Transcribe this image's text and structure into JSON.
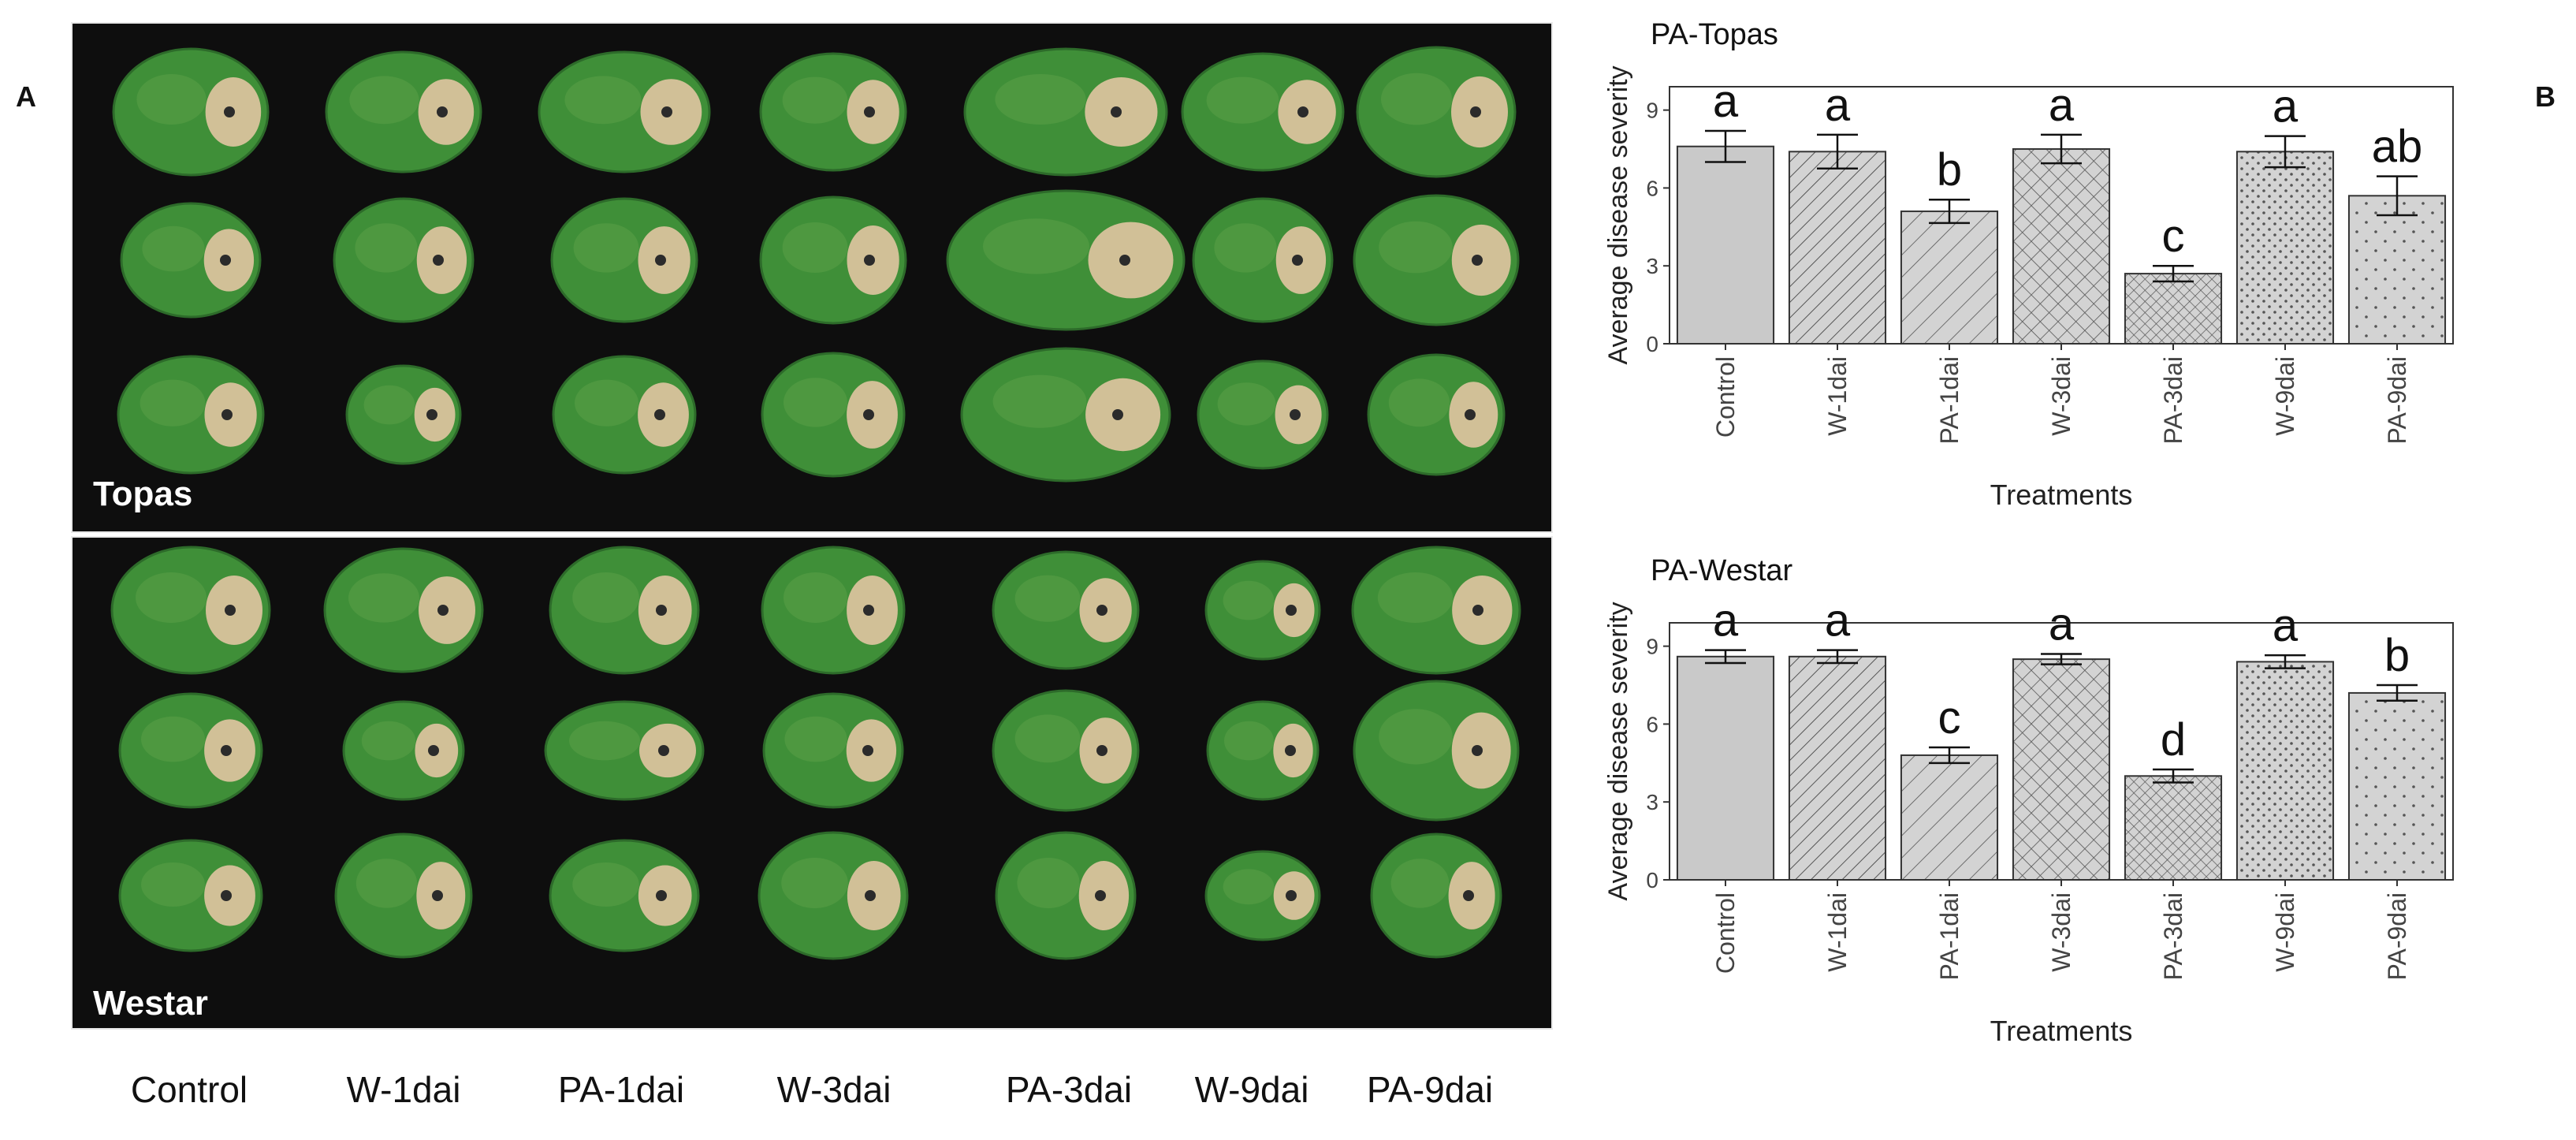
{
  "panel_a_label": "A",
  "panel_b_label": "B",
  "photo_top_label": "Topas",
  "photo_bottom_label": "Westar",
  "column_labels": [
    "Control",
    "W-1dai",
    "PA-1dai",
    "W-3dai",
    "PA-3dai",
    "W-9dai",
    "PA-9dai"
  ],
  "colors": {
    "photo_background": "#0e0e0e",
    "leaf_green": "#3f8f38",
    "lesion_tan": "#d9c39c",
    "bar_fill": "#c9c9c9",
    "bar_outline": "#333333"
  },
  "chart_data": [
    {
      "type": "bar",
      "title": "PA-Topas",
      "xlabel": "Treatments",
      "ylabel": "Average disease severity",
      "categories": [
        "Control",
        "W-1dai",
        "PA-1dai",
        "W-3dai",
        "PA-3dai",
        "W-9dai",
        "PA-9dai"
      ],
      "values": [
        7.6,
        7.4,
        5.1,
        7.5,
        2.7,
        7.4,
        5.7
      ],
      "errors": [
        0.6,
        0.65,
        0.45,
        0.55,
        0.3,
        0.6,
        0.75
      ],
      "significance_letters": [
        "a",
        "a",
        "b",
        "a",
        "c",
        "a",
        "ab"
      ],
      "patterns": [
        "solid",
        "diagonal",
        "diagonal-sparse",
        "crosshatch",
        "crosshatch-dense",
        "dots",
        "dots-sparse"
      ],
      "yticks": [
        0,
        3,
        6,
        9
      ],
      "ylim": [
        0,
        9.9
      ],
      "grid": false
    },
    {
      "type": "bar",
      "title": "PA-Westar",
      "xlabel": "Treatments",
      "ylabel": "Average disease severity",
      "categories": [
        "Control",
        "W-1dai",
        "PA-1dai",
        "W-3dai",
        "PA-3dai",
        "W-9dai",
        "PA-9dai"
      ],
      "values": [
        8.6,
        8.6,
        4.8,
        8.5,
        4.0,
        8.4,
        7.2
      ],
      "errors": [
        0.25,
        0.25,
        0.3,
        0.2,
        0.25,
        0.25,
        0.3
      ],
      "significance_letters": [
        "a",
        "a",
        "c",
        "a",
        "d",
        "a",
        "b"
      ],
      "patterns": [
        "solid",
        "diagonal",
        "diagonal-sparse",
        "crosshatch",
        "crosshatch-dense",
        "dots",
        "dots-sparse"
      ],
      "yticks": [
        0,
        3,
        6,
        9
      ],
      "ylim": [
        0,
        9.9
      ],
      "grid": false
    }
  ]
}
